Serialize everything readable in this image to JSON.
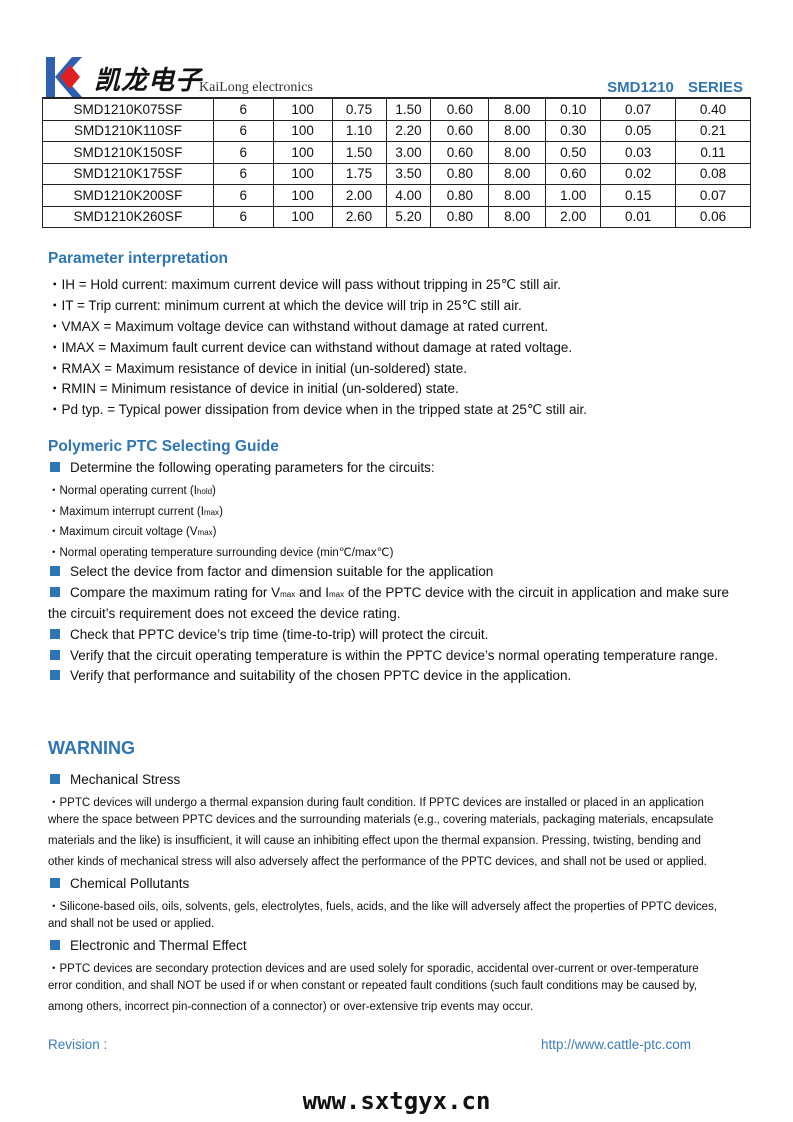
{
  "header": {
    "logo_text": "凯龙电子",
    "brand": "KaiLong electronics",
    "series": "SMD1210 SERIES"
  },
  "table": {
    "rows": [
      [
        "SMD1210K075SF",
        "6",
        "100",
        "0.75",
        "1.50",
        "0.60",
        "8.00",
        "0.10",
        "0.07",
        "0.40"
      ],
      [
        "SMD1210K110SF",
        "6",
        "100",
        "1.10",
        "2.20",
        "0.60",
        "8.00",
        "0.30",
        "0.05",
        "0.21"
      ],
      [
        "SMD1210K150SF",
        "6",
        "100",
        "1.50",
        "3.00",
        "0.60",
        "8.00",
        "0.50",
        "0.03",
        "0.11"
      ],
      [
        "SMD1210K175SF",
        "6",
        "100",
        "1.75",
        "3.50",
        "0.80",
        "8.00",
        "0.60",
        "0.02",
        "0.08"
      ],
      [
        "SMD1210K200SF",
        "6",
        "100",
        "2.00",
        "4.00",
        "0.80",
        "8.00",
        "1.00",
        "0.15",
        "0.07"
      ],
      [
        "SMD1210K260SF",
        "6",
        "100",
        "2.60",
        "5.20",
        "0.80",
        "8.00",
        "2.00",
        "0.01",
        "0.06"
      ]
    ]
  },
  "params": {
    "title": "Parameter interpretation",
    "items": [
      "・IH = Hold current: maximum current device will pass without tripping in 25℃  still air.",
      "・IT = Trip current: minimum current at which the device will trip in 25℃  still air.",
      "・VMAX = Maximum voltage device can withstand without damage at rated current.",
      "・IMAX = Maximum fault current device can withstand without damage at rated voltage.",
      "・RMAX = Maximum resistance of device in initial (un-soldered) state.",
      "・RMIN = Minimum resistance of device in initial (un-soldered) state.",
      "・Pd typ. = Typical power dissipation from device when in the tripped state at 25℃  still air."
    ]
  },
  "guide": {
    "title": "Polymeric PTC Selecting Guide",
    "determine": "Determine the following operating parameters for the circuits:",
    "sub_items": [
      {
        "text": "・Normal operating current (I",
        "sub": "hold",
        "end": ")"
      },
      {
        "text": "・Maximum interrupt current (I",
        "sub": "max",
        "end": ")"
      },
      {
        "text": "・Maximum circuit voltage (V",
        "sub": "max",
        "end": ")"
      },
      {
        "text": "・Normal operating temperature surrounding device (min℃/max℃)",
        "sub": "",
        "end": ""
      }
    ],
    "select": "Select the device from factor and dimension suitable for the application",
    "compare_a": "Compare the maximum rating for V",
    "compare_sub1": "max",
    "compare_b": " and I",
    "compare_sub2": "max",
    "compare_c": " of the PPTC device with the circuit in application and make sure",
    "compare_line2": "the circuit’s requirement does not exceed the device rating.",
    "check": "Check that PPTC device’s trip time (time-to-trip) will protect the circuit.",
    "verify_temp": "Verify that the circuit operating temperature is within the PPTC device’s normal operating temperature range.",
    "verify_perf": "Verify that performance and suitability of the chosen PPTC device in the application."
  },
  "warning": {
    "title": "WARNING",
    "mech_title": "Mechanical Stress",
    "mech_lines": [
      "・PPTC devices will undergo a thermal expansion during fault condition. If PPTC devices are installed or placed in an application",
      "where the space between PPTC devices and the surrounding materials (e.g., covering materials, packaging materials, encapsulate",
      "materials and the like) is insufficient, it will cause an inhibiting effect upon the thermal expansion. Pressing, twisting, bending and",
      "other kinds of mechanical stress will also adversely affect the performance of the PPTC devices, and shall not be used or applied."
    ],
    "chem_title": "Chemical Pollutants",
    "chem_lines": [
      "・Silicone-based oils, oils, solvents, gels, electrolytes, fuels, acids, and the like will adversely affect the properties of PPTC devices,",
      "and shall not be used or applied."
    ],
    "elec_title": "Electronic and Thermal Effect",
    "elec_lines": [
      "・PPTC devices are secondary protection devices and are used solely for sporadic, accidental over-current or over-temperature",
      "error condition, and shall NOT be used if or when constant or repeated fault conditions (such fault conditions may be caused by,",
      "among others, incorrect pin-connection of a connector) or over-extensive trip events may occur."
    ]
  },
  "footer": {
    "revision": "Revision :",
    "url": "http://www.cattle-ptc.com",
    "watermark": "www.sxtgyx.cn"
  },
  "colors": {
    "accent": "#2e75b6",
    "logo_red": "#e02020"
  }
}
